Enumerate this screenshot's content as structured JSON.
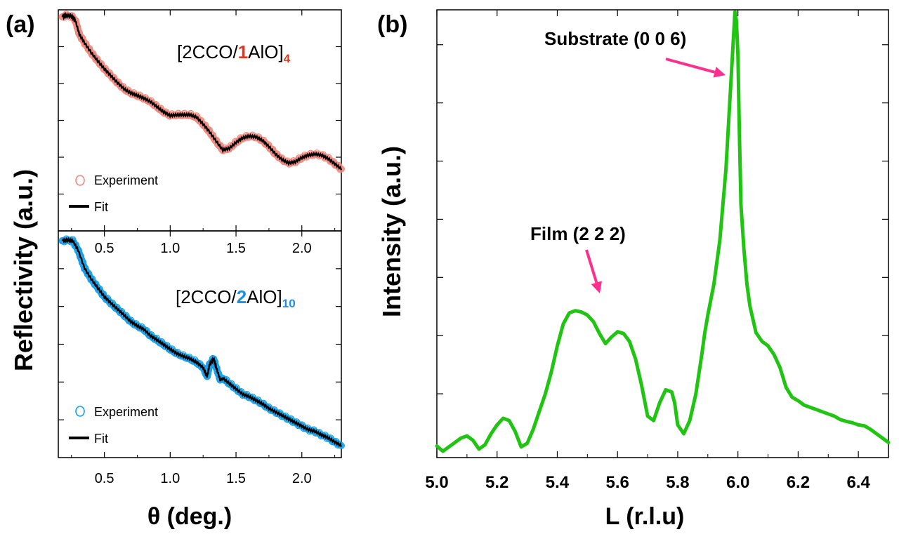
{
  "figure": {
    "panel_a_label": "(a)",
    "panel_b_label": "(b)"
  },
  "chart_data": [
    {
      "id": "a_top",
      "type": "line",
      "sample_prefix": "[2CCO/",
      "sample_number": "1",
      "sample_suffix": "AlO]",
      "sample_subscript": "4",
      "accent_color": "#e2361c",
      "ylabel": "Reflectivity (a.u.)",
      "xlim": [
        0.15,
        2.3
      ],
      "ylim": [
        0,
        6
      ],
      "ytick_count": 6,
      "x_ticks": [
        "0.5",
        "1.0",
        "1.5",
        "2.0"
      ],
      "x_tick_values": [
        0.5,
        1.0,
        1.5,
        2.0
      ],
      "legend": {
        "experiment_label": "Experiment",
        "fit_label": "Fit",
        "placement": "bottom-left"
      },
      "experiment_color": "#f08a80",
      "fit_color": "#000000",
      "series": {
        "x": [
          0.18,
          0.21,
          0.25,
          0.28,
          0.31,
          0.35,
          0.4,
          0.45,
          0.5,
          0.55,
          0.6,
          0.65,
          0.7,
          0.75,
          0.8,
          0.85,
          0.9,
          0.95,
          1.0,
          1.05,
          1.1,
          1.15,
          1.2,
          1.25,
          1.3,
          1.35,
          1.4,
          1.45,
          1.5,
          1.55,
          1.6,
          1.65,
          1.7,
          1.75,
          1.8,
          1.85,
          1.9,
          1.95,
          2.0,
          2.05,
          2.1,
          2.15,
          2.2,
          2.25,
          2.3
        ],
        "y": [
          5.96,
          6.0,
          5.98,
          5.85,
          5.45,
          5.2,
          4.92,
          4.68,
          4.45,
          4.25,
          4.05,
          3.87,
          3.75,
          3.68,
          3.6,
          3.5,
          3.35,
          3.2,
          3.1,
          3.12,
          3.12,
          3.12,
          3.05,
          2.85,
          2.62,
          2.35,
          2.1,
          2.15,
          2.32,
          2.45,
          2.5,
          2.48,
          2.38,
          2.2,
          1.98,
          1.82,
          1.72,
          1.76,
          1.88,
          1.95,
          1.98,
          1.95,
          1.85,
          1.7,
          1.55
        ]
      }
    },
    {
      "id": "a_bottom",
      "type": "line",
      "sample_prefix": "[2CCO/",
      "sample_number": "2",
      "sample_suffix": "AlO]",
      "sample_subscript": "10",
      "accent_color": "#1e90e0",
      "xlabel": "θ (deg.)",
      "xlim": [
        0.15,
        2.3
      ],
      "ylim": [
        0,
        6
      ],
      "ytick_count": 6,
      "x_ticks": [
        "0.5",
        "1.0",
        "1.5",
        "2.0"
      ],
      "x_tick_values": [
        0.5,
        1.0,
        1.5,
        2.0
      ],
      "legend": {
        "experiment_label": "Experiment",
        "fit_label": "Fit",
        "placement": "bottom-left"
      },
      "experiment_color": "#1aa0e8",
      "fit_color": "#000000",
      "series": {
        "x": [
          0.18,
          0.22,
          0.26,
          0.3,
          0.35,
          0.4,
          0.45,
          0.5,
          0.55,
          0.6,
          0.65,
          0.7,
          0.75,
          0.8,
          0.85,
          0.9,
          0.95,
          1.0,
          1.05,
          1.1,
          1.15,
          1.2,
          1.25,
          1.28,
          1.3,
          1.33,
          1.35,
          1.38,
          1.4,
          1.45,
          1.5,
          1.55,
          1.6,
          1.65,
          1.7,
          1.75,
          1.8,
          1.85,
          1.9,
          1.95,
          2.0,
          2.05,
          2.1,
          2.15,
          2.2,
          2.25,
          2.3
        ],
        "y": [
          5.88,
          5.9,
          5.88,
          5.62,
          5.1,
          4.8,
          4.55,
          4.3,
          4.12,
          3.95,
          3.78,
          3.6,
          3.48,
          3.38,
          3.2,
          3.08,
          2.95,
          2.82,
          2.7,
          2.62,
          2.55,
          2.45,
          2.3,
          2.05,
          2.4,
          2.55,
          2.3,
          1.95,
          2.0,
          1.85,
          1.7,
          1.55,
          1.48,
          1.38,
          1.28,
          1.15,
          1.05,
          0.95,
          0.85,
          0.75,
          0.65,
          0.55,
          0.5,
          0.4,
          0.32,
          0.2,
          0.1
        ]
      }
    },
    {
      "id": "b",
      "type": "line",
      "panel_label": "(b)",
      "xlabel": "L (r.l.u)",
      "ylabel": "Intensity (a.u.)",
      "xlim": [
        5.0,
        6.5
      ],
      "ylim": [
        0,
        1.0
      ],
      "ytick_count": 7,
      "x_ticks": [
        "5.0",
        "5.2",
        "5.4",
        "5.6",
        "5.8",
        "6.0",
        "6.2",
        "6.4"
      ],
      "x_tick_values": [
        5.0,
        5.2,
        5.4,
        5.6,
        5.8,
        6.0,
        6.2,
        6.4
      ],
      "line_color": "#22c414",
      "annotations": [
        {
          "text": "Substrate  (0 0 6)",
          "points_to": [
            5.995,
            0.94
          ],
          "color": "#ff2f8e"
        },
        {
          "text": "Film (2 2 2)",
          "points_to": [
            5.54,
            0.375
          ],
          "color": "#ff2f8e"
        }
      ],
      "series": {
        "x": [
          5.0,
          5.02,
          5.04,
          5.06,
          5.08,
          5.1,
          5.12,
          5.14,
          5.16,
          5.18,
          5.2,
          5.22,
          5.24,
          5.26,
          5.28,
          5.3,
          5.32,
          5.34,
          5.36,
          5.38,
          5.4,
          5.42,
          5.44,
          5.46,
          5.48,
          5.5,
          5.52,
          5.54,
          5.56,
          5.58,
          5.6,
          5.62,
          5.64,
          5.66,
          5.68,
          5.7,
          5.72,
          5.74,
          5.76,
          5.78,
          5.79,
          5.8,
          5.82,
          5.84,
          5.86,
          5.88,
          5.89,
          5.9,
          5.92,
          5.94,
          5.96,
          5.98,
          5.99,
          5.995,
          6.0,
          6.005,
          6.01,
          6.02,
          6.03,
          6.04,
          6.06,
          6.08,
          6.1,
          6.12,
          6.14,
          6.16,
          6.18,
          6.2,
          6.22,
          6.24,
          6.26,
          6.28,
          6.3,
          6.32,
          6.34,
          6.36,
          6.38,
          6.4,
          6.42,
          6.44,
          6.46,
          6.48,
          6.5
        ],
        "y": [
          0.012,
          0.0,
          0.01,
          0.02,
          0.03,
          0.035,
          0.025,
          0.005,
          0.015,
          0.04,
          0.06,
          0.075,
          0.07,
          0.045,
          0.01,
          0.018,
          0.05,
          0.09,
          0.13,
          0.18,
          0.24,
          0.29,
          0.315,
          0.32,
          0.317,
          0.31,
          0.295,
          0.268,
          0.245,
          0.26,
          0.272,
          0.268,
          0.25,
          0.21,
          0.15,
          0.08,
          0.07,
          0.11,
          0.14,
          0.135,
          0.11,
          0.06,
          0.04,
          0.07,
          0.13,
          0.22,
          0.27,
          0.31,
          0.38,
          0.48,
          0.64,
          0.88,
          1.0,
          0.98,
          0.9,
          0.72,
          0.56,
          0.46,
          0.38,
          0.33,
          0.27,
          0.25,
          0.24,
          0.22,
          0.19,
          0.145,
          0.123,
          0.115,
          0.105,
          0.1,
          0.095,
          0.09,
          0.085,
          0.08,
          0.072,
          0.068,
          0.065,
          0.06,
          0.058,
          0.05,
          0.04,
          0.03,
          0.02
        ]
      }
    }
  ]
}
